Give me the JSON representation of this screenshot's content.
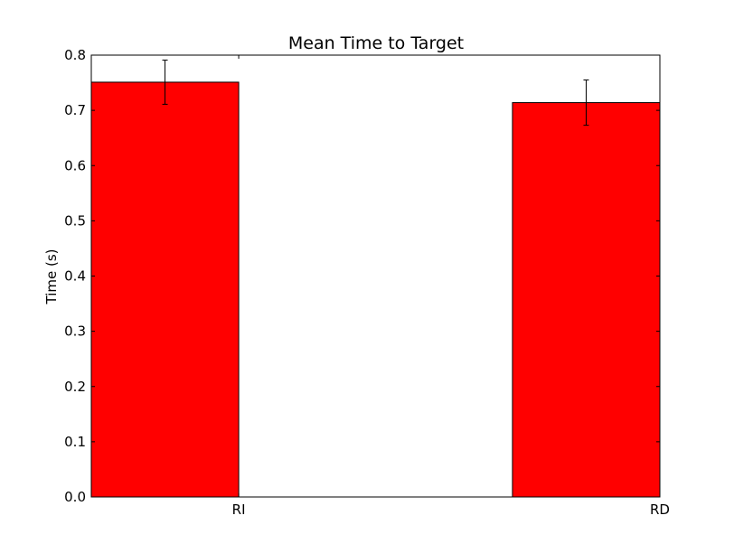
{
  "chart_data": {
    "type": "bar",
    "title": "Mean Time to Target",
    "xlabel": "",
    "ylabel": "Time (s)",
    "categories": [
      "RI",
      "RD"
    ],
    "values": [
      0.751,
      0.714
    ],
    "errors": [
      0.04,
      0.041
    ],
    "ylim": [
      0.0,
      0.8
    ],
    "yticks": [
      "0.0",
      "0.1",
      "0.2",
      "0.3",
      "0.4",
      "0.5",
      "0.6",
      "0.7",
      "0.8"
    ],
    "bar_color": "#ff0000",
    "grid": false
  }
}
